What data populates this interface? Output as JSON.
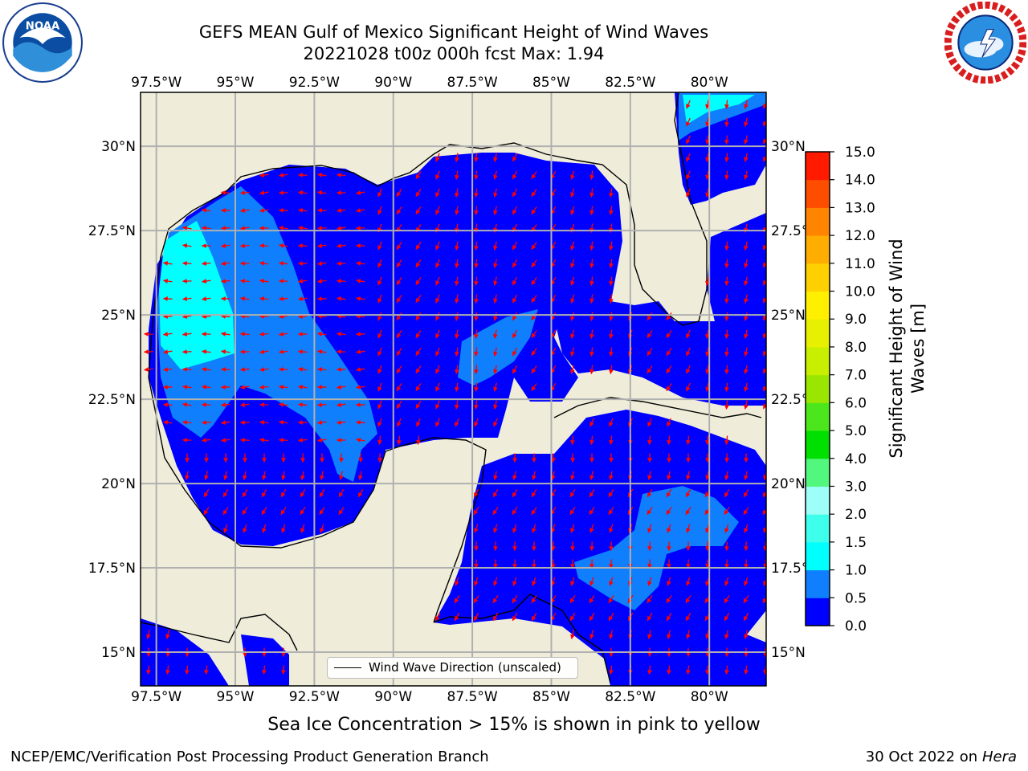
{
  "title_line1": "GEFS MEAN Gulf of Mexico Significant Height of Wind Waves",
  "title_line2": "20221028 t00z 000h fcst   Max: 1.94",
  "logos": {
    "left_text": "NOAA",
    "left_icon": "noaa-logo-icon",
    "right_icon": "nws-logo-icon"
  },
  "map": {
    "lon_labels": [
      "97.5°W",
      "95°W",
      "92.5°W",
      "90°W",
      "87.5°W",
      "85°W",
      "82.5°W",
      "80°W"
    ],
    "lon_values": [
      -97.5,
      -95,
      -92.5,
      -90,
      -87.5,
      -85,
      -82.5,
      -80
    ],
    "lat_labels": [
      "30°N",
      "27.5°N",
      "25°N",
      "22.5°N",
      "20°N",
      "17.5°N",
      "15°N"
    ],
    "lat_values": [
      30,
      27.5,
      25,
      22.5,
      20,
      17.5,
      15
    ],
    "lon_range": [
      -98,
      -78.2
    ],
    "lat_range": [
      14,
      31.6
    ],
    "land_color": "#efedda",
    "grid": true
  },
  "legend": {
    "label": "Wind Wave Direction (unscaled)"
  },
  "colorbar": {
    "label": "Significant Height of Wind Waves [m]",
    "ticks": [
      "0.0",
      "0.5",
      "1.0",
      "1.5",
      "2.0",
      "3.0",
      "4.0",
      "5.0",
      "6.0",
      "7.0",
      "8.0",
      "9.0",
      "10.0",
      "11.0",
      "12.0",
      "13.0",
      "14.0",
      "15.0"
    ],
    "colors": [
      "#0000ff",
      "#0f7ffd",
      "#00ffff",
      "#3effec",
      "#9dfff8",
      "#52f77d",
      "#00e000",
      "#4be61c",
      "#9be600",
      "#c8ef00",
      "#e6f000",
      "#fff000",
      "#ffd000",
      "#ffad00",
      "#ff8500",
      "#ff4d00",
      "#ff1a00"
    ]
  },
  "subtitle": "Sea Ice Concentration > 15% is shown in pink to yellow",
  "footer_left": "NCEP/EMC/Verification Post Processing Product Generation Branch",
  "footer_right_date": "30 Oct 2022 on",
  "footer_right_host": "Hera"
}
